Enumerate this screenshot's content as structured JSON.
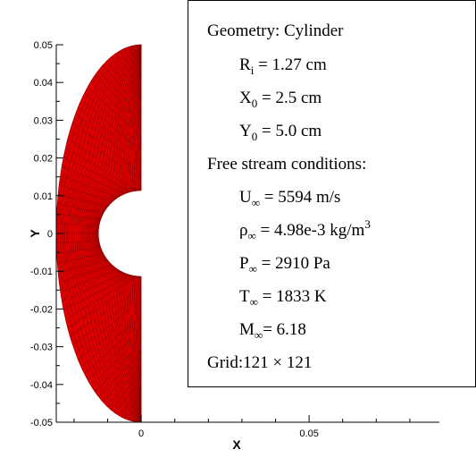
{
  "chart_data": {
    "type": "mesh",
    "x_label": "X",
    "y_label": "Y",
    "xlim": [
      -0.0253,
      0.0888
    ],
    "ylim": [
      -0.05,
      0.05
    ],
    "xticks": [
      0,
      0.05
    ],
    "xminorticks": [
      -0.02,
      -0.01,
      0.01,
      0.02,
      0.03,
      0.04,
      0.06,
      0.07,
      0.08
    ],
    "yticks": [
      -0.05,
      -0.04,
      -0.03,
      -0.02,
      -0.01,
      0,
      0.01,
      0.02,
      0.03,
      0.04,
      0.05
    ],
    "yminorticks": [
      -0.045,
      -0.035,
      -0.025,
      -0.015,
      -0.005,
      0.005,
      0.015,
      0.025,
      0.035,
      0.045
    ],
    "color": "#dd0000",
    "annotation": [
      {
        "main": "Geometry: Cylinder"
      },
      {
        "main": "R",
        "sub": "i",
        "rest": " = 1.27 cm"
      },
      {
        "main": "X",
        "sub": "0",
        "rest": " = 2.5 cm"
      },
      {
        "main": "Y",
        "sub": "0",
        "rest": " = 5.0 cm"
      },
      {
        "main": "Free stream conditions:"
      },
      {
        "main": "U",
        "sub": "∞",
        "rest": " = 5594 m/s"
      },
      {
        "main": "ρ",
        "sub": "∞",
        "rest": " = 4.98e-3 kg/m",
        "sup": "3"
      },
      {
        "main": "P",
        "sub": "∞",
        "rest": " = 2910 Pa"
      },
      {
        "main": "T",
        "sub": "∞",
        "rest": " = 1833 K"
      },
      {
        "main": "M",
        "sub": "∞",
        "rest": "= 6.18"
      },
      {
        "main": "Grid:121 × 121"
      }
    ]
  }
}
